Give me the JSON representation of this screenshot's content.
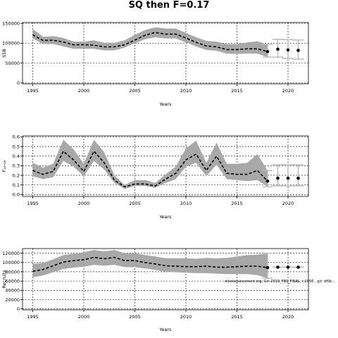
{
  "title": "SQ then F=0.17",
  "footnote": "stockassessment.org, Gcı 2019_FBS_FINAL, r:1956 , git: df0b...",
  "chart_data": [
    {
      "type": "line",
      "ylabel": "SSB",
      "xlabel": "Years",
      "xlim": [
        1994.0,
        2022.0
      ],
      "ylim": [
        -2000,
        152000
      ],
      "xticks": [
        1995,
        2000,
        2005,
        2010,
        2015,
        2020
      ],
      "yticks": [
        0,
        50000,
        100000,
        150000
      ],
      "ytick_labels": [
        "0",
        "50000",
        "100000",
        "150000"
      ],
      "grid": true,
      "series": [
        {
          "role": "estimate",
          "x": [
            1995,
            1996,
            1997,
            1998,
            1999,
            2000,
            2001,
            2002,
            2003,
            2004,
            2005,
            2006,
            2007,
            2008,
            2009,
            2010,
            2011,
            2012,
            2013,
            2014,
            2015,
            2016,
            2017,
            2018
          ],
          "y": [
            121000,
            107000,
            107500,
            103000,
            96000,
            96500,
            95000,
            91000,
            91000,
            96000,
            108000,
            120000,
            127000,
            123000,
            123000,
            113000,
            102000,
            93000,
            91000,
            84000,
            84000,
            86000,
            86000,
            79000
          ],
          "lower": [
            112000,
            98000,
            98000,
            92000,
            86000,
            86000,
            86000,
            82000,
            82000,
            89000,
            100000,
            110000,
            115000,
            112000,
            112000,
            102000,
            92000,
            83000,
            81000,
            74000,
            73000,
            74000,
            74000,
            65000
          ],
          "upper": [
            136000,
            116000,
            118000,
            113000,
            104000,
            104000,
            107000,
            101000,
            101000,
            107000,
            121000,
            133000,
            140000,
            137000,
            137000,
            126000,
            115000,
            106000,
            104000,
            98000,
            98000,
            102000,
            105000,
            97000
          ]
        },
        {
          "role": "forecast",
          "x": [
            2019,
            2020,
            2021
          ],
          "y": [
            85000,
            83000,
            82000
          ],
          "lower": [
            65000,
            62000,
            60000
          ],
          "upper": [
            110000,
            109000,
            108000
          ]
        }
      ]
    },
    {
      "type": "line",
      "ylabel": "F₁₀-₁₈",
      "xlabel": "Years",
      "xlim": [
        1994.0,
        2022.0
      ],
      "ylim": [
        -0.02,
        0.61
      ],
      "xticks": [
        1995,
        2000,
        2005,
        2010,
        2015,
        2020
      ],
      "yticks": [
        0.0,
        0.1,
        0.2,
        0.3,
        0.4,
        0.5,
        0.6
      ],
      "ytick_labels": [
        "0.0",
        "0.1",
        "0.2",
        "0.3",
        "0.4",
        "0.5",
        "0.6"
      ],
      "grid": true,
      "series": [
        {
          "role": "estimate",
          "x": [
            1995,
            1996,
            1997,
            1998,
            1999,
            2000,
            2001,
            2002,
            2003,
            2004,
            2005,
            2006,
            2007,
            2008,
            2009,
            2010,
            2011,
            2012,
            2013,
            2014,
            2015,
            2016,
            2017,
            2018
          ],
          "y": [
            0.25,
            0.21,
            0.24,
            0.45,
            0.36,
            0.24,
            0.45,
            0.33,
            0.15,
            0.08,
            0.11,
            0.11,
            0.09,
            0.16,
            0.22,
            0.36,
            0.42,
            0.25,
            0.4,
            0.22,
            0.21,
            0.21,
            0.25,
            0.14
          ],
          "lower": [
            0.19,
            0.16,
            0.18,
            0.35,
            0.29,
            0.19,
            0.35,
            0.26,
            0.12,
            0.06,
            0.09,
            0.09,
            0.07,
            0.12,
            0.16,
            0.29,
            0.33,
            0.19,
            0.31,
            0.16,
            0.15,
            0.14,
            0.15,
            0.08
          ],
          "upper": [
            0.33,
            0.28,
            0.32,
            0.57,
            0.47,
            0.32,
            0.57,
            0.44,
            0.2,
            0.1,
            0.15,
            0.15,
            0.12,
            0.21,
            0.29,
            0.48,
            0.56,
            0.33,
            0.54,
            0.32,
            0.32,
            0.33,
            0.42,
            0.25
          ]
        },
        {
          "role": "forecast",
          "x": [
            2019,
            2020,
            2021
          ],
          "y": [
            0.17,
            0.17,
            0.17
          ],
          "lower": [
            0.09,
            0.09,
            0.09
          ],
          "upper": [
            0.31,
            0.31,
            0.31
          ]
        }
      ]
    },
    {
      "type": "line",
      "ylabel": "Recruits",
      "xlabel": "Years",
      "xlim": [
        1994.0,
        2022.0
      ],
      "ylim": [
        -2000,
        130000
      ],
      "xticks": [
        1995,
        2000,
        2005,
        2010,
        2015,
        2020
      ],
      "yticks": [
        0,
        20000,
        40000,
        60000,
        80000,
        100000,
        120000
      ],
      "ytick_labels": [
        "0",
        "20000",
        "40000",
        "60000",
        "80000",
        "100000",
        "120000"
      ],
      "grid": true,
      "series": [
        {
          "role": "estimate",
          "x": [
            1995,
            1996,
            1997,
            1998,
            1999,
            2000,
            2001,
            2002,
            2003,
            2004,
            2005,
            2006,
            2007,
            2008,
            2009,
            2010,
            2011,
            2012,
            2013,
            2014,
            2015,
            2016,
            2017,
            2018
          ],
          "y": [
            81000,
            85000,
            93000,
            101000,
            104000,
            106000,
            111000,
            108000,
            111000,
            104000,
            104000,
            100000,
            97000,
            93000,
            92000,
            91000,
            91000,
            92000,
            90000,
            90000,
            91000,
            92000,
            92000,
            89000
          ],
          "lower": [
            68000,
            72000,
            79000,
            86000,
            89000,
            91000,
            95000,
            93000,
            95000,
            90000,
            90000,
            87000,
            84000,
            80000,
            79000,
            78000,
            77000,
            77000,
            76000,
            75000,
            75000,
            75000,
            73000,
            66000
          ],
          "upper": [
            97000,
            99000,
            107000,
            116000,
            119000,
            122000,
            127000,
            124000,
            127000,
            120000,
            120000,
            116000,
            113000,
            109000,
            109000,
            109000,
            108000,
            110000,
            109000,
            110000,
            113000,
            116000,
            117000,
            120000
          ]
        },
        {
          "role": "forecast",
          "x": [
            2019,
            2020,
            2021
          ],
          "y": [
            90000,
            90000,
            90000
          ],
          "lower": [
            90000,
            90000,
            90000
          ],
          "upper": [
            90000,
            90000,
            90000
          ]
        }
      ]
    }
  ]
}
